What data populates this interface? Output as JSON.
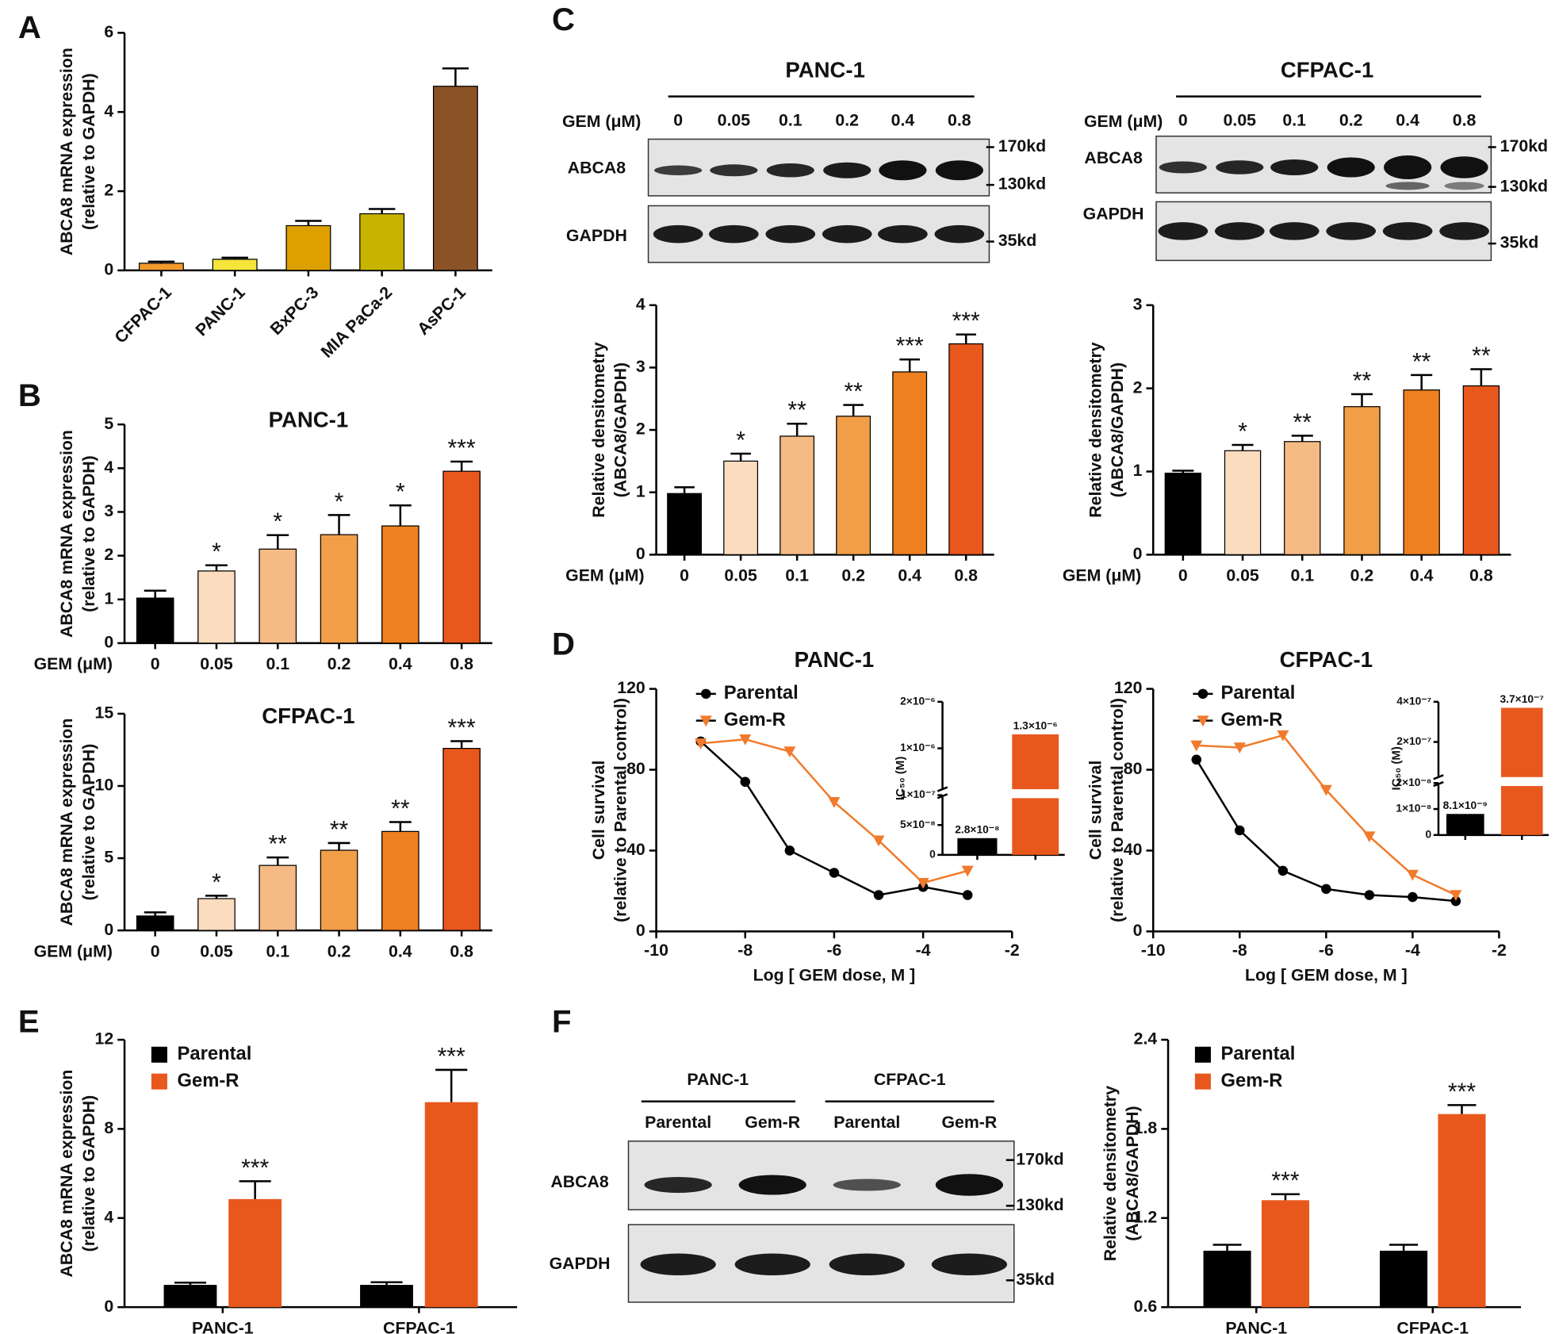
{
  "panel_labels": [
    "A",
    "B",
    "C",
    "D",
    "E",
    "F"
  ],
  "blots": [
    {
      "title": "PANC-1",
      "dose_label": "GEM (μM)",
      "lanes": [
        "0",
        "0.05",
        "0.1",
        "0.2",
        "0.4",
        "0.8"
      ],
      "rows": [
        "ABCA8",
        "GAPDH"
      ],
      "markers": [
        "170kd",
        "130kd",
        "35kd"
      ]
    },
    {
      "title": "CFPAC-1",
      "dose_label": "GEM (μM)",
      "lanes": [
        "0",
        "0.05",
        "0.1",
        "0.2",
        "0.4",
        "0.8"
      ],
      "rows": [
        "ABCA8",
        "GAPDH"
      ],
      "markers": [
        "170kd",
        "130kd",
        "35kd"
      ]
    },
    {
      "groups": [
        "PANC-1",
        "CFPAC-1"
      ],
      "lanes": [
        "Parental",
        "Gem-R",
        "Parental",
        "Gem-R"
      ],
      "rows": [
        "ABCA8",
        "GAPDH"
      ],
      "markers": [
        "170kd",
        "130kd",
        "35kd"
      ]
    }
  ],
  "chart_data": [
    {
      "type": "bar",
      "y_label": [
        "ABCA8 mRNA expression",
        "(relative to GAPDH)"
      ],
      "categories": [
        "CFPAC-1",
        "PANC-1",
        "BxPC-3",
        "MIA PaCa-2",
        "AsPC-1"
      ],
      "values": [
        0.18,
        0.28,
        1.13,
        1.43,
        4.65
      ],
      "errors": [
        0.04,
        0.04,
        0.12,
        0.12,
        0.45
      ],
      "colors": [
        "#f39a2e",
        "#f5e53a",
        "#dda000",
        "#c6b400",
        "#8b5226"
      ],
      "xtick_rotation": -45,
      "ylim": [
        0,
        6
      ],
      "yticks": [
        0,
        2,
        4,
        6
      ]
    },
    {
      "type": "bar",
      "title": "PANC-1",
      "x_label": "GEM (μM)",
      "y_label": [
        "ABCA8 mRNA expression",
        "(relative to GAPDH)"
      ],
      "categories": [
        "0",
        "0.05",
        "0.1",
        "0.2",
        "0.4",
        "0.8"
      ],
      "values": [
        1.03,
        1.65,
        2.15,
        2.48,
        2.68,
        3.93
      ],
      "errors": [
        0.17,
        0.13,
        0.32,
        0.45,
        0.47,
        0.22
      ],
      "annotations": [
        null,
        "*",
        "*",
        "*",
        "*",
        "***"
      ],
      "colors": [
        "#000000",
        "#fbdcbe",
        "#f6bb84",
        "#f29e48",
        "#ee801f",
        "#e8581d"
      ],
      "ylim": [
        0,
        5
      ],
      "yticks": [
        0,
        1,
        2,
        3,
        4,
        5
      ]
    },
    {
      "type": "bar",
      "title": "CFPAC-1",
      "x_label": "GEM (μM)",
      "y_label": [
        "ABCA8 mRNA expression",
        "(relative to GAPDH)"
      ],
      "categories": [
        "0",
        "0.05",
        "0.1",
        "0.2",
        "0.4",
        "0.8"
      ],
      "values": [
        1.0,
        2.2,
        4.5,
        5.55,
        6.85,
        12.6
      ],
      "errors": [
        0.25,
        0.2,
        0.55,
        0.5,
        0.65,
        0.5
      ],
      "annotations": [
        null,
        "*",
        "**",
        "**",
        "**",
        "***"
      ],
      "colors": [
        "#000000",
        "#fbdcbe",
        "#f6bb84",
        "#f29e48",
        "#ee801f",
        "#e8581d"
      ],
      "ylim": [
        0,
        15
      ],
      "yticks": [
        0,
        5,
        10,
        15
      ]
    },
    {
      "type": "bar",
      "x_label": "GEM (μM)",
      "y_label": [
        "Relative densitometry",
        "(ABCA8/GAPDH)"
      ],
      "categories": [
        "0",
        "0.05",
        "0.1",
        "0.2",
        "0.4",
        "0.8"
      ],
      "values": [
        0.98,
        1.5,
        1.9,
        2.22,
        2.93,
        3.38
      ],
      "errors": [
        0.1,
        0.12,
        0.2,
        0.18,
        0.2,
        0.15
      ],
      "annotations": [
        null,
        "*",
        "**",
        "**",
        "***",
        "***"
      ],
      "colors": [
        "#000000",
        "#fbdcbe",
        "#f6bb84",
        "#f29e48",
        "#ee801f",
        "#e8581d"
      ],
      "ylim": [
        0,
        4
      ],
      "yticks": [
        0,
        1,
        2,
        3,
        4
      ]
    },
    {
      "type": "bar",
      "x_label": "GEM (μM)",
      "y_label": [
        "Relative densitometry",
        "(ABCA8/GAPDH)"
      ],
      "categories": [
        "0",
        "0.05",
        "0.1",
        "0.2",
        "0.4",
        "0.8"
      ],
      "values": [
        0.98,
        1.25,
        1.36,
        1.78,
        1.98,
        2.03
      ],
      "errors": [
        0.03,
        0.07,
        0.07,
        0.15,
        0.18,
        0.2
      ],
      "annotations": [
        null,
        "*",
        "**",
        "**",
        "**",
        "**"
      ],
      "colors": [
        "#000000",
        "#fbdcbe",
        "#f6bb84",
        "#f29e48",
        "#ee801f",
        "#e8581d"
      ],
      "ylim": [
        0,
        3
      ],
      "yticks": [
        0,
        1,
        2,
        3
      ]
    },
    {
      "type": "line",
      "title": "PANC-1",
      "x_label": "Log [ GEM dose, M ]",
      "y_label": [
        "Cell survival",
        "(relative to Parental control)"
      ],
      "x": [
        -9,
        -8,
        -7,
        -6,
        -5,
        -4,
        -3
      ],
      "xlim": [
        -10,
        -2
      ],
      "xticks": [
        -10,
        -8,
        -6,
        -4,
        -2
      ],
      "ylim": [
        0,
        120
      ],
      "yticks": [
        0,
        40,
        80,
        120
      ],
      "legend": "upper left",
      "series": [
        {
          "name": "Parental",
          "color": "#000000",
          "marker": "circle",
          "values": [
            94,
            74,
            40,
            29,
            18,
            22,
            18
          ]
        },
        {
          "name": "Gem-R",
          "color": "#f07b2c",
          "marker": "triangle",
          "values": [
            93,
            95,
            89,
            64,
            45,
            24,
            30
          ]
        }
      ],
      "inset": {
        "type": "bar",
        "y_label": "IC₅₀ (M)",
        "categories": [
          null,
          null
        ],
        "values": [
          2.8e-08,
          1.3e-06
        ],
        "value_labels": [
          "2.8×10⁻⁸",
          "1.3×10⁻⁶"
        ],
        "colors": [
          "#000000",
          "#e8581d"
        ],
        "ylim": [
          0,
          2e-06
        ],
        "ybreak": 1e-07,
        "yticks": [
          0,
          {
            "value": 5e-08,
            "label": "5×10⁻⁸"
          },
          {
            "value": 1e-07,
            "label": "1×10⁻⁷"
          },
          {
            "value": 1e-06,
            "label": "1×10⁻⁶"
          },
          {
            "value": 2e-06,
            "label": "2×10⁻⁶"
          }
        ]
      }
    },
    {
      "type": "line",
      "title": "CFPAC-1",
      "x_label": "Log [ GEM dose, M ]",
      "y_label": [
        "Cell survival",
        "(relative to Parental control)"
      ],
      "x": [
        -9,
        -8,
        -7,
        -6,
        -5,
        -4,
        -3
      ],
      "xlim": [
        -10,
        -2
      ],
      "xticks": [
        -10,
        -8,
        -6,
        -4,
        -2
      ],
      "ylim": [
        0,
        120
      ],
      "yticks": [
        0,
        40,
        80,
        120
      ],
      "legend": "upper left",
      "series": [
        {
          "name": "Parental",
          "color": "#000000",
          "marker": "circle",
          "values": [
            85,
            50,
            30,
            21,
            18,
            17,
            15
          ]
        },
        {
          "name": "Gem-R",
          "color": "#f07b2c",
          "marker": "triangle",
          "values": [
            92,
            91,
            97,
            70,
            47,
            28,
            18
          ]
        }
      ],
      "inset": {
        "type": "bar",
        "y_label": "IC₅₀ (M)",
        "categories": [
          null,
          null
        ],
        "values": [
          8.1e-09,
          3.7e-07
        ],
        "value_labels": [
          "8.1×10⁻⁹",
          "3.7×10⁻⁷"
        ],
        "colors": [
          "#000000",
          "#e8581d"
        ],
        "ylim": [
          0,
          4e-07
        ],
        "ybreak": 2e-08,
        "yticks": [
          0,
          {
            "value": 1e-08,
            "label": "1×10⁻⁸"
          },
          {
            "value": 2e-08,
            "label": "2×10⁻⁸"
          },
          {
            "value": 2e-07,
            "label": "2×10⁻⁷"
          },
          {
            "value": 4e-07,
            "label": "4×10⁻⁷"
          }
        ]
      }
    },
    {
      "type": "bar",
      "y_label": [
        "ABCA8 mRNA expression",
        "(relative to GAPDH)"
      ],
      "categories": [
        "PANC-1",
        "CFPAC-1"
      ],
      "legend": "upper left",
      "ylim": [
        0,
        12
      ],
      "yticks": [
        0,
        4,
        8,
        12
      ],
      "series": [
        {
          "name": "Parental",
          "color": "#000000",
          "values": [
            1.0,
            1.0
          ],
          "errors": [
            0.1,
            0.12
          ]
        },
        {
          "name": "Gem-R",
          "color": "#e8581d",
          "values": [
            4.85,
            9.2
          ],
          "errors": [
            0.8,
            1.45
          ],
          "annotations": [
            "***",
            "***"
          ]
        }
      ]
    },
    {
      "type": "bar",
      "y_label": [
        "Relative densitometry",
        "(ABCA8/GAPDH)"
      ],
      "categories": [
        "PANC-1",
        "CFPAC-1"
      ],
      "legend": "upper left",
      "ylim": [
        0.6,
        2.4
      ],
      "yticks": [
        0.6,
        1.2,
        1.8,
        2.4
      ],
      "series": [
        {
          "name": "Parental",
          "color": "#000000",
          "values": [
            0.98,
            0.98
          ],
          "errors": [
            0.04,
            0.04
          ]
        },
        {
          "name": "Gem-R",
          "color": "#e8581d",
          "values": [
            1.32,
            1.9
          ],
          "errors": [
            0.04,
            0.06
          ],
          "annotations": [
            "***",
            "***"
          ]
        }
      ]
    }
  ]
}
